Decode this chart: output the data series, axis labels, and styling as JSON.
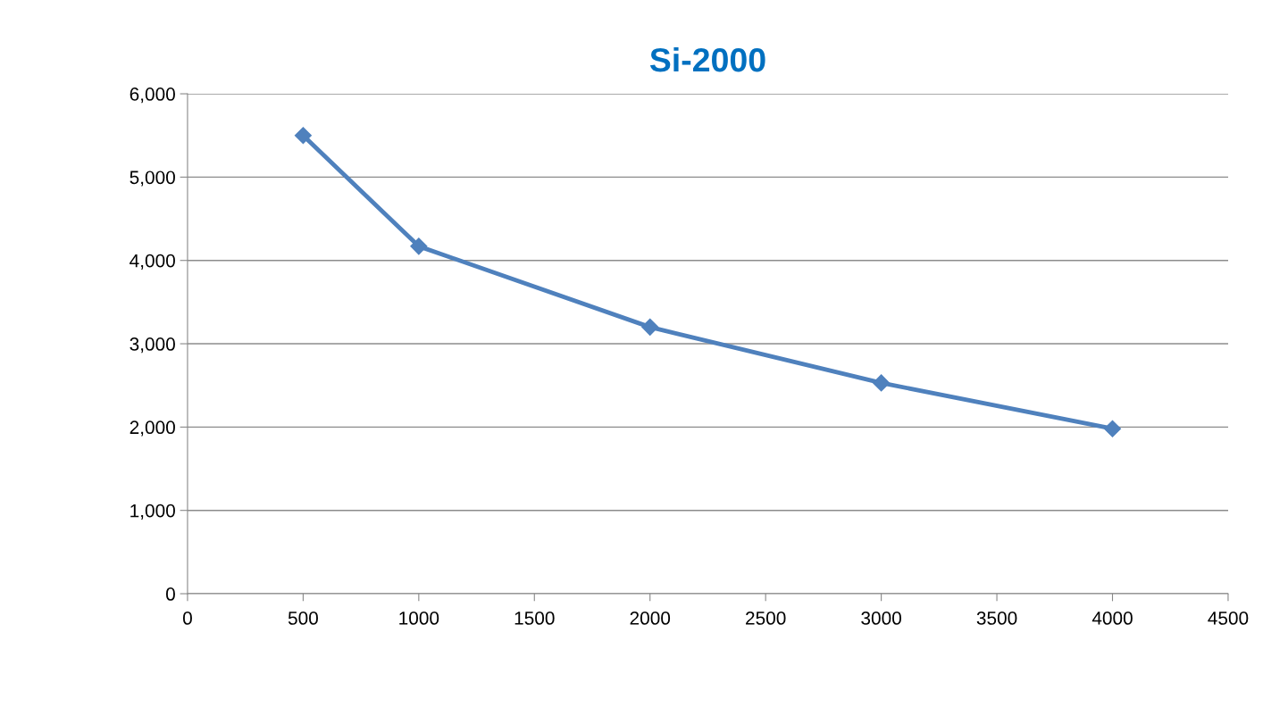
{
  "chart_data": {
    "type": "line",
    "title": "Si-2000",
    "x": [
      500,
      1000,
      2000,
      3000,
      4000
    ],
    "series": [
      {
        "color": "#4f81bd",
        "values": [
          5500,
          4170,
          3200,
          2530,
          1980
        ]
      }
    ],
    "xlim": [
      0,
      4500
    ],
    "xticks": [
      0,
      500,
      1000,
      1500,
      2000,
      2500,
      3000,
      3500,
      4000,
      4500
    ],
    "ylim": [
      0,
      6000
    ],
    "yticks": [
      {
        "value": 0,
        "label": "0"
      },
      {
        "value": 1000,
        "label": "1,000"
      },
      {
        "value": 2000,
        "label": "2,000"
      },
      {
        "value": 3000,
        "label": "3,000"
      },
      {
        "value": 4000,
        "label": "4,000"
      },
      {
        "value": 5000,
        "label": "5,000"
      },
      {
        "value": 6000,
        "label": "6,000"
      }
    ],
    "grid": "y",
    "marker": "diamond",
    "line_style": "solid",
    "legend": false
  }
}
